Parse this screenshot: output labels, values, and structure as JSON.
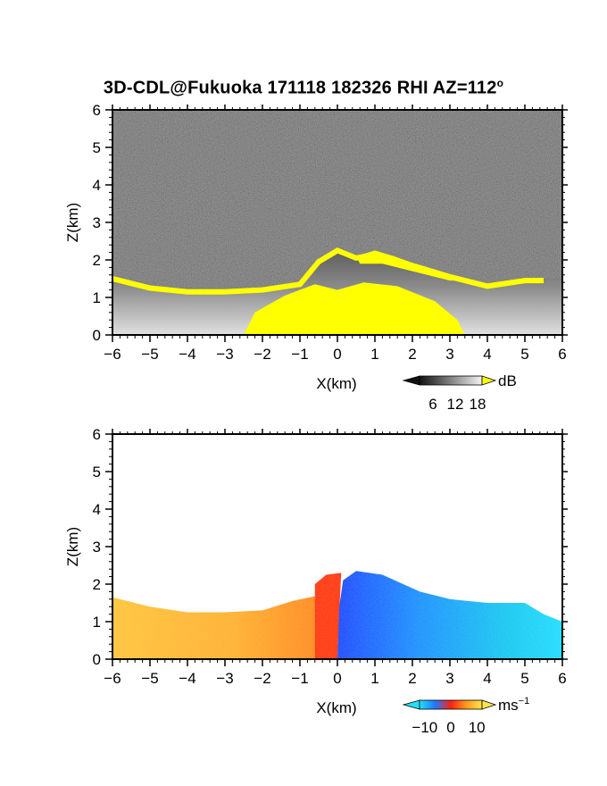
{
  "title": {
    "main": "3D-CDL@Fukuoka 171118 182326 RHI AZ=112",
    "degree_sup": "o"
  },
  "chart_data": [
    {
      "type": "heatmap",
      "panel": "top",
      "variable": "SNR",
      "xlabel": "X(km)",
      "ylabel": "Z(km)",
      "xlim": [
        -6,
        6
      ],
      "ylim": [
        0,
        6
      ],
      "xticks": [
        "-6",
        "-5",
        "-4",
        "-3",
        "-2",
        "-1",
        "0",
        "1",
        "2",
        "3",
        "4",
        "5",
        "6"
      ],
      "yticks": [
        "0",
        "1",
        "2",
        "3",
        "4",
        "5",
        "6"
      ],
      "background": "noise (dark gray)",
      "colormap": "grayscale, saturating to yellow",
      "colorbar": {
        "ticks": [
          "6",
          "12",
          "18"
        ],
        "unit": "dB",
        "over_color": "#ffff00"
      },
      "echo_top_profile": {
        "x": [
          -6,
          -5,
          -4,
          -3,
          -2,
          -1,
          -0.5,
          0,
          0.5,
          1,
          2,
          3,
          4,
          5,
          5.5
        ],
        "z": [
          1.55,
          1.3,
          1.2,
          1.2,
          1.25,
          1.4,
          2.0,
          2.3,
          2.1,
          2.2,
          1.9,
          1.6,
          1.35,
          1.5,
          1.5
        ]
      }
    },
    {
      "type": "heatmap",
      "panel": "bottom",
      "variable": "Doppler velocity",
      "xlabel": "X(km)",
      "ylabel": "Z(km)",
      "xlim": [
        -6,
        6
      ],
      "ylim": [
        0,
        6
      ],
      "xticks": [
        "-6",
        "-5",
        "-4",
        "-3",
        "-2",
        "-1",
        "0",
        "1",
        "2",
        "3",
        "4",
        "5",
        "6"
      ],
      "yticks": [
        "0",
        "1",
        "2",
        "3",
        "4",
        "5",
        "6"
      ],
      "colormap": "cyan-blue-red-orange-yellow",
      "colorbar": {
        "ticks": [
          "−10",
          "0",
          "10"
        ],
        "unit": "ms",
        "unit_sup": "−1",
        "range": [
          -12,
          12
        ]
      },
      "regions": [
        {
          "x": [
            -6,
            -0.5
          ],
          "z": [
            0,
            1.6
          ],
          "velocity_ms": 8
        },
        {
          "x": [
            -0.5,
            0
          ],
          "z": [
            0,
            2.3
          ],
          "velocity_ms": 2
        },
        {
          "x": [
            0,
            6
          ],
          "z": [
            0,
            2.4
          ],
          "velocity_ms": -6
        }
      ]
    }
  ]
}
